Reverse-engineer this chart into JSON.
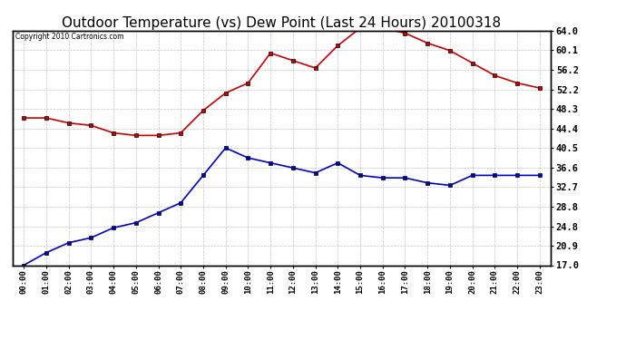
{
  "title": "Outdoor Temperature (vs) Dew Point (Last 24 Hours) 20100318",
  "copyright": "Copyright 2010 Cartronics.com",
  "x_labels": [
    "00:00",
    "01:00",
    "02:00",
    "03:00",
    "04:00",
    "05:00",
    "06:00",
    "07:00",
    "08:00",
    "09:00",
    "10:00",
    "11:00",
    "12:00",
    "13:00",
    "14:00",
    "15:00",
    "16:00",
    "17:00",
    "18:00",
    "19:00",
    "20:00",
    "21:00",
    "22:00",
    "23:00"
  ],
  "y_right_ticks": [
    17.0,
    20.9,
    24.8,
    28.8,
    32.7,
    36.6,
    40.5,
    44.4,
    48.3,
    52.2,
    56.2,
    60.1,
    64.0
  ],
  "temp_data": [
    46.5,
    46.5,
    45.5,
    45.0,
    43.5,
    43.0,
    43.0,
    43.5,
    48.0,
    51.5,
    53.5,
    59.5,
    58.0,
    56.5,
    61.0,
    64.5,
    64.5,
    63.5,
    61.5,
    60.0,
    57.5,
    55.0,
    53.5,
    52.5
  ],
  "dew_data": [
    17.0,
    19.5,
    21.5,
    22.5,
    24.5,
    25.5,
    27.5,
    29.5,
    35.0,
    40.5,
    38.5,
    37.5,
    36.5,
    35.5,
    37.5,
    35.0,
    34.5,
    34.5,
    33.5,
    33.0,
    35.0,
    35.0,
    35.0,
    35.0
  ],
  "temp_color": "#cc0000",
  "dew_color": "#0000cc",
  "bg_color": "#ffffff",
  "plot_bg_color": "#ffffff",
  "grid_color": "#aaaaaa",
  "title_fontsize": 11,
  "ylim": [
    17.0,
    64.0
  ]
}
